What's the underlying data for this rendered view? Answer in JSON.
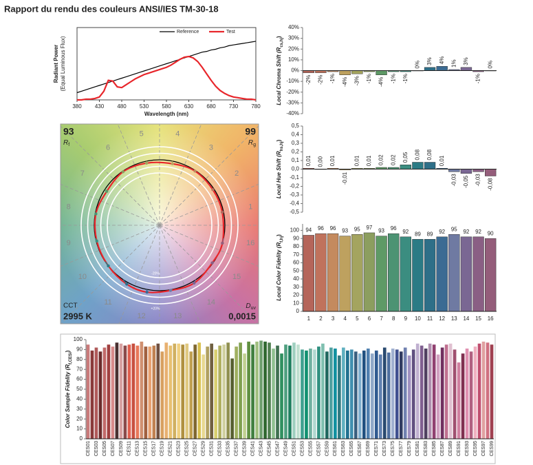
{
  "title": "Rapport du rendu des couleurs ANSI/IES TM-30-18",
  "chart_data": [
    {
      "type": "line",
      "xlabel": "Wavelength (nm)",
      "ylabel": [
        "Radiant Power",
        "(Equal Luminous Flux)"
      ],
      "x": [
        380,
        390,
        400,
        410,
        420,
        430,
        440,
        450,
        460,
        470,
        480,
        490,
        500,
        510,
        520,
        530,
        540,
        550,
        560,
        570,
        580,
        590,
        600,
        610,
        620,
        630,
        640,
        650,
        660,
        670,
        680,
        690,
        700,
        710,
        720,
        730,
        740,
        750,
        760,
        770,
        780
      ],
      "xlim": [
        380,
        780
      ],
      "xticks": [
        380,
        430,
        480,
        530,
        580,
        630,
        680,
        730,
        780
      ],
      "ylim": [
        0,
        1
      ],
      "legend": "top-right",
      "series": [
        {
          "name": "Reference",
          "color": "#000000",
          "values": [
            0.1,
            0.12,
            0.14,
            0.16,
            0.18,
            0.2,
            0.22,
            0.24,
            0.26,
            0.28,
            0.3,
            0.32,
            0.34,
            0.36,
            0.38,
            0.4,
            0.42,
            0.44,
            0.46,
            0.48,
            0.5,
            0.52,
            0.54,
            0.56,
            0.58,
            0.6,
            0.62,
            0.64,
            0.66,
            0.67,
            0.69,
            0.7,
            0.72,
            0.73,
            0.75,
            0.76,
            0.77,
            0.78,
            0.79,
            0.8,
            0.81
          ]
        },
        {
          "name": "Test",
          "color": "#e8262b",
          "values": [
            0.0,
            0.0,
            0.01,
            0.01,
            0.02,
            0.04,
            0.12,
            0.27,
            0.26,
            0.18,
            0.17,
            0.21,
            0.25,
            0.29,
            0.32,
            0.35,
            0.37,
            0.39,
            0.41,
            0.43,
            0.45,
            0.48,
            0.52,
            0.56,
            0.59,
            0.6,
            0.58,
            0.53,
            0.45,
            0.36,
            0.27,
            0.19,
            0.13,
            0.09,
            0.06,
            0.04,
            0.03,
            0.02,
            0.01,
            0.01,
            0.0
          ]
        }
      ]
    },
    {
      "type": "bar",
      "ylabel": {
        "text": "Local Chroma Shift (R",
        "sub": "cs,hj",
        "end": ")"
      },
      "values": [
        -2,
        -2,
        -1,
        -4,
        -3,
        -1,
        -4,
        -1,
        -1,
        0,
        3,
        4,
        1,
        3,
        -1,
        0
      ],
      "value_labels": [
        "-2%",
        "-2%",
        "-1%",
        "-4%",
        "-3%",
        "-1%",
        "-4%",
        "-1%",
        "-1%",
        "0%",
        "3%",
        "4%",
        "1%",
        "3%",
        "-1%",
        "0%"
      ],
      "ylim": [
        -40,
        40
      ],
      "yticks": [
        {
          "value": 40,
          "label": "40%"
        },
        {
          "value": 30,
          "label": "30%"
        },
        {
          "value": 20,
          "label": "20%"
        },
        {
          "value": 10,
          "label": "10%"
        },
        {
          "value": 0,
          "label": "0%"
        },
        {
          "value": -10,
          "label": "-10%"
        },
        {
          "value": -20,
          "label": "-20%"
        },
        {
          "value": -30,
          "label": "-30%"
        },
        {
          "value": -40,
          "label": "-40%"
        }
      ]
    },
    {
      "type": "bar",
      "ylabel": {
        "text": "Local Hue Shift (R",
        "sub": "hs,hj",
        "end": ")"
      },
      "values": [
        0.01,
        0.0,
        0.01,
        -0.01,
        0.01,
        0.01,
        0.02,
        0.02,
        0.05,
        0.08,
        0.08,
        0.01,
        -0.03,
        -0.05,
        -0.03,
        -0.08
      ],
      "value_labels": [
        "0,01",
        "0,00",
        "0,01",
        "-0,01",
        "0,01",
        "0,01",
        "0,02",
        "0,02",
        "0,05",
        "0,08",
        "0,08",
        "0,01",
        "-0,03",
        "-0,05",
        "-0,03",
        "-0,08"
      ],
      "ylim": [
        -0.5,
        0.5
      ],
      "yticks": [
        {
          "value": 0.5,
          "label": "0,5"
        },
        {
          "value": 0.4,
          "label": "0,4"
        },
        {
          "value": 0.3,
          "label": "0,3"
        },
        {
          "value": 0.2,
          "label": "0,2"
        },
        {
          "value": 0.1,
          "label": "0,1"
        },
        {
          "value": 0,
          "label": "0,0"
        },
        {
          "value": -0.1,
          "label": "-0,1"
        },
        {
          "value": -0.2,
          "label": "-0,2"
        },
        {
          "value": -0.3,
          "label": "-0,3"
        },
        {
          "value": -0.4,
          "label": "-0,4"
        },
        {
          "value": -0.5,
          "label": "-0,5"
        }
      ]
    },
    {
      "type": "bar",
      "ylabel": {
        "text": "Local Color Fidelity (R",
        "sub": "f,hj",
        "end": ")"
      },
      "categories": [
        "1",
        "2",
        "3",
        "4",
        "5",
        "6",
        "7",
        "8",
        "9",
        "10",
        "11",
        "12",
        "13",
        "14",
        "15",
        "16"
      ],
      "values": [
        94,
        96,
        96,
        93,
        95,
        97,
        93,
        96,
        92,
        89,
        89,
        92,
        95,
        92,
        92,
        90
      ],
      "data_labels": true,
      "colors": [
        "#b5655a",
        "#c0725c",
        "#c48a5e",
        "#bea15f",
        "#a4a45f",
        "#8c9e5f",
        "#5e9a66",
        "#4c9373",
        "#3b8d80",
        "#2b7b85",
        "#2e6f88",
        "#3b6b93",
        "#6f7aa2",
        "#7a6793",
        "#8a5f84",
        "#945d7a"
      ],
      "ylim": [
        0,
        108
      ],
      "yticks": [
        0,
        10,
        20,
        30,
        40,
        50,
        60,
        70,
        80,
        90,
        100
      ]
    },
    {
      "type": "vector",
      "rf": 93,
      "rf_symbol": {
        "text": "R",
        "sub": "f"
      },
      "rg": 99,
      "rg_symbol": {
        "text": "R",
        "sub": "g"
      },
      "cct_label": "CCT",
      "cct": "2995 K",
      "duv_symbol": {
        "text": "D",
        "sub": "uv"
      },
      "duv": "0,0015",
      "bins": [
        "1",
        "2",
        "3",
        "4",
        "5",
        "6",
        "7",
        "8",
        "9",
        "10",
        "11",
        "12",
        "13",
        "14",
        "15",
        "16"
      ],
      "scale_labels": [
        "-20%",
        "+20%"
      ]
    },
    {
      "type": "bar",
      "ylabel": {
        "text": "Color Sample Fidelity (R",
        "sub": "f,CESi",
        "end": ")"
      },
      "categories": [
        "CES01",
        null,
        "CES03",
        null,
        "CES05",
        null,
        "CES07",
        null,
        "CES09",
        null,
        "CES11",
        null,
        "CES13",
        null,
        "CES15",
        null,
        "CES17",
        null,
        "CES19",
        null,
        "CES21",
        null,
        "CES23",
        null,
        "CES25",
        null,
        "CES27",
        null,
        "CES29",
        null,
        "CES31",
        null,
        "CES33",
        null,
        "CES35",
        null,
        "CES37",
        null,
        "CES39",
        null,
        "CES41",
        null,
        "CES43",
        null,
        "CES45",
        null,
        "CES47",
        null,
        "CES49",
        null,
        "CES51",
        null,
        "CES53",
        null,
        "CES55",
        null,
        "CES57",
        null,
        "CES59",
        null,
        "CES61",
        null,
        "CES63",
        null,
        "CES65",
        null,
        "CES67",
        null,
        "CES69",
        null,
        "CES71",
        null,
        "CES73",
        null,
        "CES75",
        null,
        "CES77",
        null,
        "CES79",
        null,
        "CES81",
        null,
        "CES83",
        null,
        "CES85",
        null,
        "CES87",
        null,
        "CES89",
        null,
        "CES91",
        null,
        "CES93",
        null,
        "CES95",
        null,
        "CES97",
        null,
        "CES99"
      ],
      "values": [
        95,
        89,
        92,
        88,
        92,
        95,
        93,
        97,
        96,
        94,
        95,
        96,
        94,
        98,
        93,
        93,
        94,
        96,
        88,
        97,
        94,
        96,
        96,
        95,
        96,
        88,
        95,
        97,
        85,
        93,
        96,
        90,
        94,
        95,
        97,
        81,
        93,
        97,
        86,
        98,
        95,
        98,
        99,
        98,
        97,
        91,
        94,
        86,
        95,
        94,
        97,
        95,
        90,
        89,
        91,
        90,
        93,
        96,
        88,
        92,
        91,
        84,
        92,
        89,
        90,
        88,
        86,
        89,
        91,
        86,
        89,
        85,
        92,
        87,
        91,
        90,
        88,
        92,
        84,
        90,
        96,
        94,
        91,
        96,
        95,
        85,
        92,
        95,
        96,
        90,
        77,
        86,
        91,
        88,
        93,
        96,
        98,
        97,
        95
      ],
      "colors": [
        "#c97a7a",
        "#8a3a3a",
        "#b05a5a",
        "#6b2c2c",
        "#c26a6a",
        "#a04040",
        "#d88a8a",
        "#4a3030",
        "#d8a0a0",
        "#8a4a4a",
        "#e06050",
        "#c85040",
        "#e8785a",
        "#d09070",
        "#a06040",
        "#e8a070",
        "#c08050",
        "#705040",
        "#d8a060",
        "#e8b070",
        "#e8c070",
        "#d0b060",
        "#f0d080",
        "#b09040",
        "#e0c880",
        "#c0a050",
        "#806830",
        "#d8c050",
        "#e8d890",
        "#b0a060",
        "#706040",
        "#d8d070",
        "#b0b060",
        "#d0d0a0",
        "#909050",
        "#586030",
        "#a0b060",
        "#80a050",
        "#c0d090",
        "#609040",
        "#408040",
        "#a0c080",
        "#70a070",
        "#306830",
        "#508050",
        "#90c090",
        "#407050",
        "#309060",
        "#50a080",
        "#208060",
        "#a0d0c0",
        "#c0e0d0",
        "#40a090",
        "#109070",
        "#70b0a0",
        "#b0d8d0",
        "#309080",
        "#80c0b0",
        "#206860",
        "#50a0a0",
        "#1090a0",
        "#307880",
        "#60b0c0",
        "#207090",
        "#4090b0",
        "#3a6080",
        "#80b0d0",
        "#205080",
        "#5080b0",
        "#90a8c8",
        "#305a90",
        "#6080b0",
        "#2a4a70",
        "#5070a0",
        "#a0b0d0",
        "#405090",
        "#303a60",
        "#7080b0",
        "#a090c0",
        "#605080",
        "#c0b0d0",
        "#806090",
        "#504060",
        "#b090b0",
        "#904070",
        "#d0a0c0",
        "#703060",
        "#c07090",
        "#e0c0d0",
        "#a05070",
        "#d080a0",
        "#803050",
        "#e090b0",
        "#b06080",
        "#f0b0c0",
        "#c05070",
        "#e0a0a0",
        "#d07080",
        "#a04050"
      ],
      "ylim": [
        0,
        100
      ],
      "yticks": [
        0,
        10,
        20,
        30,
        40,
        50,
        60,
        70,
        80,
        90,
        100
      ]
    }
  ]
}
